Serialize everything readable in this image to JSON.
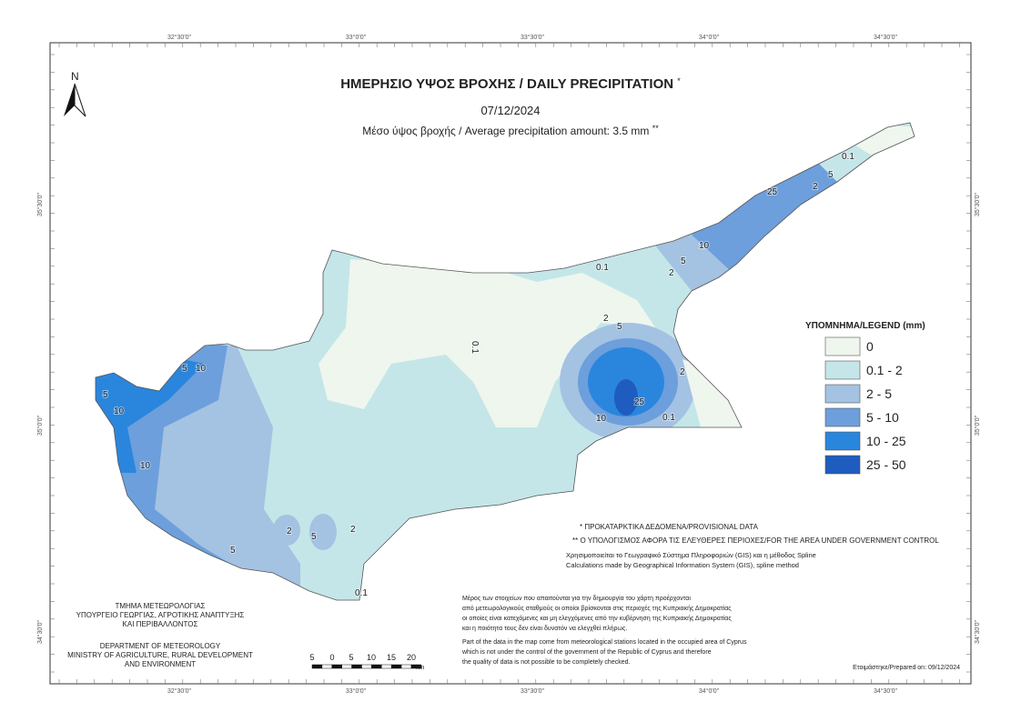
{
  "header": {
    "title": "ΗΜΕΡΗΣΙΟ ΥΨΟΣ ΒΡΟΧΗΣ / DAILY PRECIPITATION",
    "title_mark": "*",
    "date": "07/12/2024",
    "subtitle": "Μέσο ύψος βροχής / Average precipitation amount: 3.5 mm",
    "subtitle_mark": "**"
  },
  "north": "N",
  "graticule": {
    "top": [
      "32°30'0\"",
      "33°0'0\"",
      "33°30'0\"",
      "34°0'0\"",
      "34°30'0\""
    ],
    "bottom": [
      "32°30'0\"",
      "33°0'0\"",
      "33°30'0\"",
      "34°0'0\"",
      "34°30'0\""
    ],
    "left": [
      "35°30'0\"",
      "35°0'0\"",
      "34°30'0\""
    ],
    "right": [
      "35°30'0\"",
      "35°0'0\"",
      "34°30'0\""
    ]
  },
  "legend": {
    "title": "ΥΠΟΜΝΗΜΑ/LEGEND (mm)",
    "items": [
      {
        "label": "0",
        "color": "#eef6ee"
      },
      {
        "label": "0.1 - 2",
        "color": "#c4e6e8"
      },
      {
        "label": "2 - 5",
        "color": "#a4c2e2"
      },
      {
        "label": "5 - 10",
        "color": "#6c9fdc"
      },
      {
        "label": "10 - 25",
        "color": "#2a86dd"
      },
      {
        "label": "25 - 50",
        "color": "#1f5cbf"
      }
    ]
  },
  "contour_labels": [
    "0.1",
    "2",
    "5",
    "10",
    "25",
    "5",
    "10",
    "10",
    "5",
    "2",
    "5",
    "2",
    "0.1",
    "5",
    "10",
    "25",
    "5",
    "2",
    "0.1",
    "0.1",
    "2",
    "0.1",
    "10",
    "5",
    "2"
  ],
  "notes": [
    "* ΠΡΟΚΑΤΑΡΚΤΙΚΑ ΔΕΔΟΜΕΝΑ/PROVISIONAL DATA",
    "** Ο ΥΠΟΛΟΓΙΣΜΟΣ ΑΦΟΡΑ ΤΙΣ ΕΛΕΥΘΕΡΕΣ ΠΕΡΙΟΧΕΣ/FOR THE AREA UNDER GOVERNMENT CONTROL",
    "Χρησιμοποιείται το Γεωγραφικό Σύστημα Πληροφοριών (GIS) και η μέθοδος Spline",
    "Calculations made by Geographical Information System (GIS), spline method"
  ],
  "disclaimer_gr": [
    "Μέρος των στοιχείων που απαιτούνται για την δημιουργία του χάρτη προέρχονται",
    "από μετεωρολογικούς σταθμούς οι οποίοι βρίσκονται στις περιοχές της Κυπριακής Δημοκρατίας",
    "οι οποίες είναι κατεχόμενες και μη ελεγχόμενες από την κυβέρνηση της Κυπριακής Δημοκρατίας",
    "και η ποιότητα τους δεν είναι δυνατόν να ελεγχθεί πλήρως."
  ],
  "disclaimer_en": [
    "Part of the data in the map come from meteorological stations located in the occupied area of Cyprus",
    "which is not under the control of the government of the Republic of Cyprus and therefore",
    "the quality of data is not possible to be completely checked."
  ],
  "prepared": "Ετοιμάστηκε/Prepared on: 09/12/2024",
  "department_gr": [
    "ΤΜΗΜΑ ΜΕΤΕΩΡΟΛΟΓΙΑΣ",
    "ΥΠΟΥΡΓΕΙΟ ΓΕΩΡΓΙΑΣ, ΑΓΡΟΤΙΚΗΣ ΑΝΑΠΤΥΞΗΣ",
    "ΚΑΙ ΠΕΡΙΒΑΛΛΟΝΤΟΣ"
  ],
  "department_en": [
    "DEPARTMENT OF METEOROLOGY",
    "MINISTRY OF AGRICULTURE, RURAL DEVELOPMENT",
    "AND ENVIRONMENT"
  ],
  "scale": {
    "labels": [
      "5",
      "0",
      "5",
      "10",
      "15",
      "20"
    ],
    "unit": "km"
  }
}
